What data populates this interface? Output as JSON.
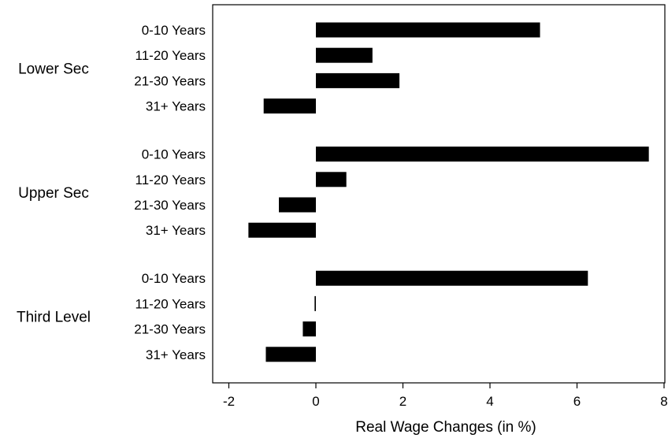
{
  "chart_data": {
    "type": "bar",
    "orientation": "horizontal",
    "xlabel": "Real Wage Changes (in %)",
    "xlim": [
      -2.4,
      8.2
    ],
    "xticks": [
      -2,
      0,
      2,
      4,
      6,
      8
    ],
    "xtick_labels": [
      "-2",
      "0",
      "2",
      "4",
      "6",
      "8"
    ],
    "grid": false,
    "legend": "none",
    "bar_color": "#000000",
    "groups": [
      {
        "name": "Lower Sec",
        "categories": [
          "0-10 Years",
          "11-20 Years",
          "21-30 Years",
          "31+ Years"
        ],
        "values": [
          5.15,
          1.3,
          1.92,
          -1.2
        ]
      },
      {
        "name": "Upper Sec",
        "categories": [
          "0-10 Years",
          "11-20 Years",
          "21-30 Years",
          "31+ Years"
        ],
        "values": [
          7.65,
          0.7,
          -0.85,
          -1.55
        ]
      },
      {
        "name": "Third Level",
        "categories": [
          "0-10 Years",
          "11-20 Years",
          "21-30 Years",
          "31+ Years"
        ],
        "values": [
          6.25,
          -0.03,
          -0.3,
          -1.15
        ]
      }
    ]
  }
}
